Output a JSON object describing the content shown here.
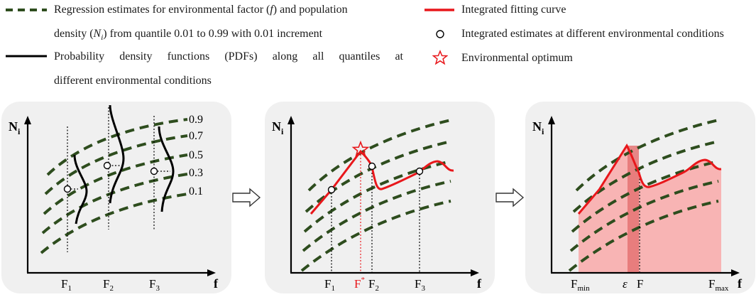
{
  "legend": {
    "regression_line1": "Regression estimates for environmental factor (",
    "regression_f": "f",
    "regression_line1b": ") and population",
    "regression_line2a": "density (",
    "regression_N": "N",
    "regression_i": "i",
    "regression_line2b": ") from quantile 0.01 to 0.99 with 0.01 increment",
    "pdf_line1": "Probability density functions (PDFs) along all quantiles at",
    "pdf_line2": "different environmental conditions",
    "fitting_curve": "Integrated fitting curve",
    "integrated_estimates": "Integrated estimates at different environmental conditions",
    "optimum": "Environmental optimum"
  },
  "colors": {
    "regression": "#2e4d1e",
    "fitting": "#e8171b",
    "pdf": "#000000",
    "area": "#f8b4b4",
    "area_dark": "#e57373",
    "panel_bg": "#f0f0f0"
  },
  "panel1": {
    "y_axis": "N",
    "y_sub": "i",
    "x_axis": "f",
    "quantiles": [
      "0.9",
      "0.7",
      "0.5",
      "0.3",
      "0.1"
    ],
    "f_labels": [
      {
        "main": "F",
        "sub": "1"
      },
      {
        "main": "F",
        "sub": "2"
      },
      {
        "main": "F",
        "sub": "3"
      }
    ]
  },
  "panel2": {
    "y_axis": "N",
    "y_sub": "i",
    "x_axis": "f",
    "f1": {
      "main": "F",
      "sub": "1"
    },
    "fstar": {
      "main": "F",
      "sup": "*"
    },
    "f2": {
      "main": "F",
      "sub": "2"
    },
    "f3": {
      "main": "F",
      "sub": "3"
    }
  },
  "panel3": {
    "y_axis": "N",
    "y_sub": "i",
    "x_axis": "f",
    "fmin": {
      "main": "F",
      "sub": "min"
    },
    "epsilon": "ε",
    "f": "F",
    "fmax": {
      "main": "F",
      "sub": "max"
    }
  }
}
